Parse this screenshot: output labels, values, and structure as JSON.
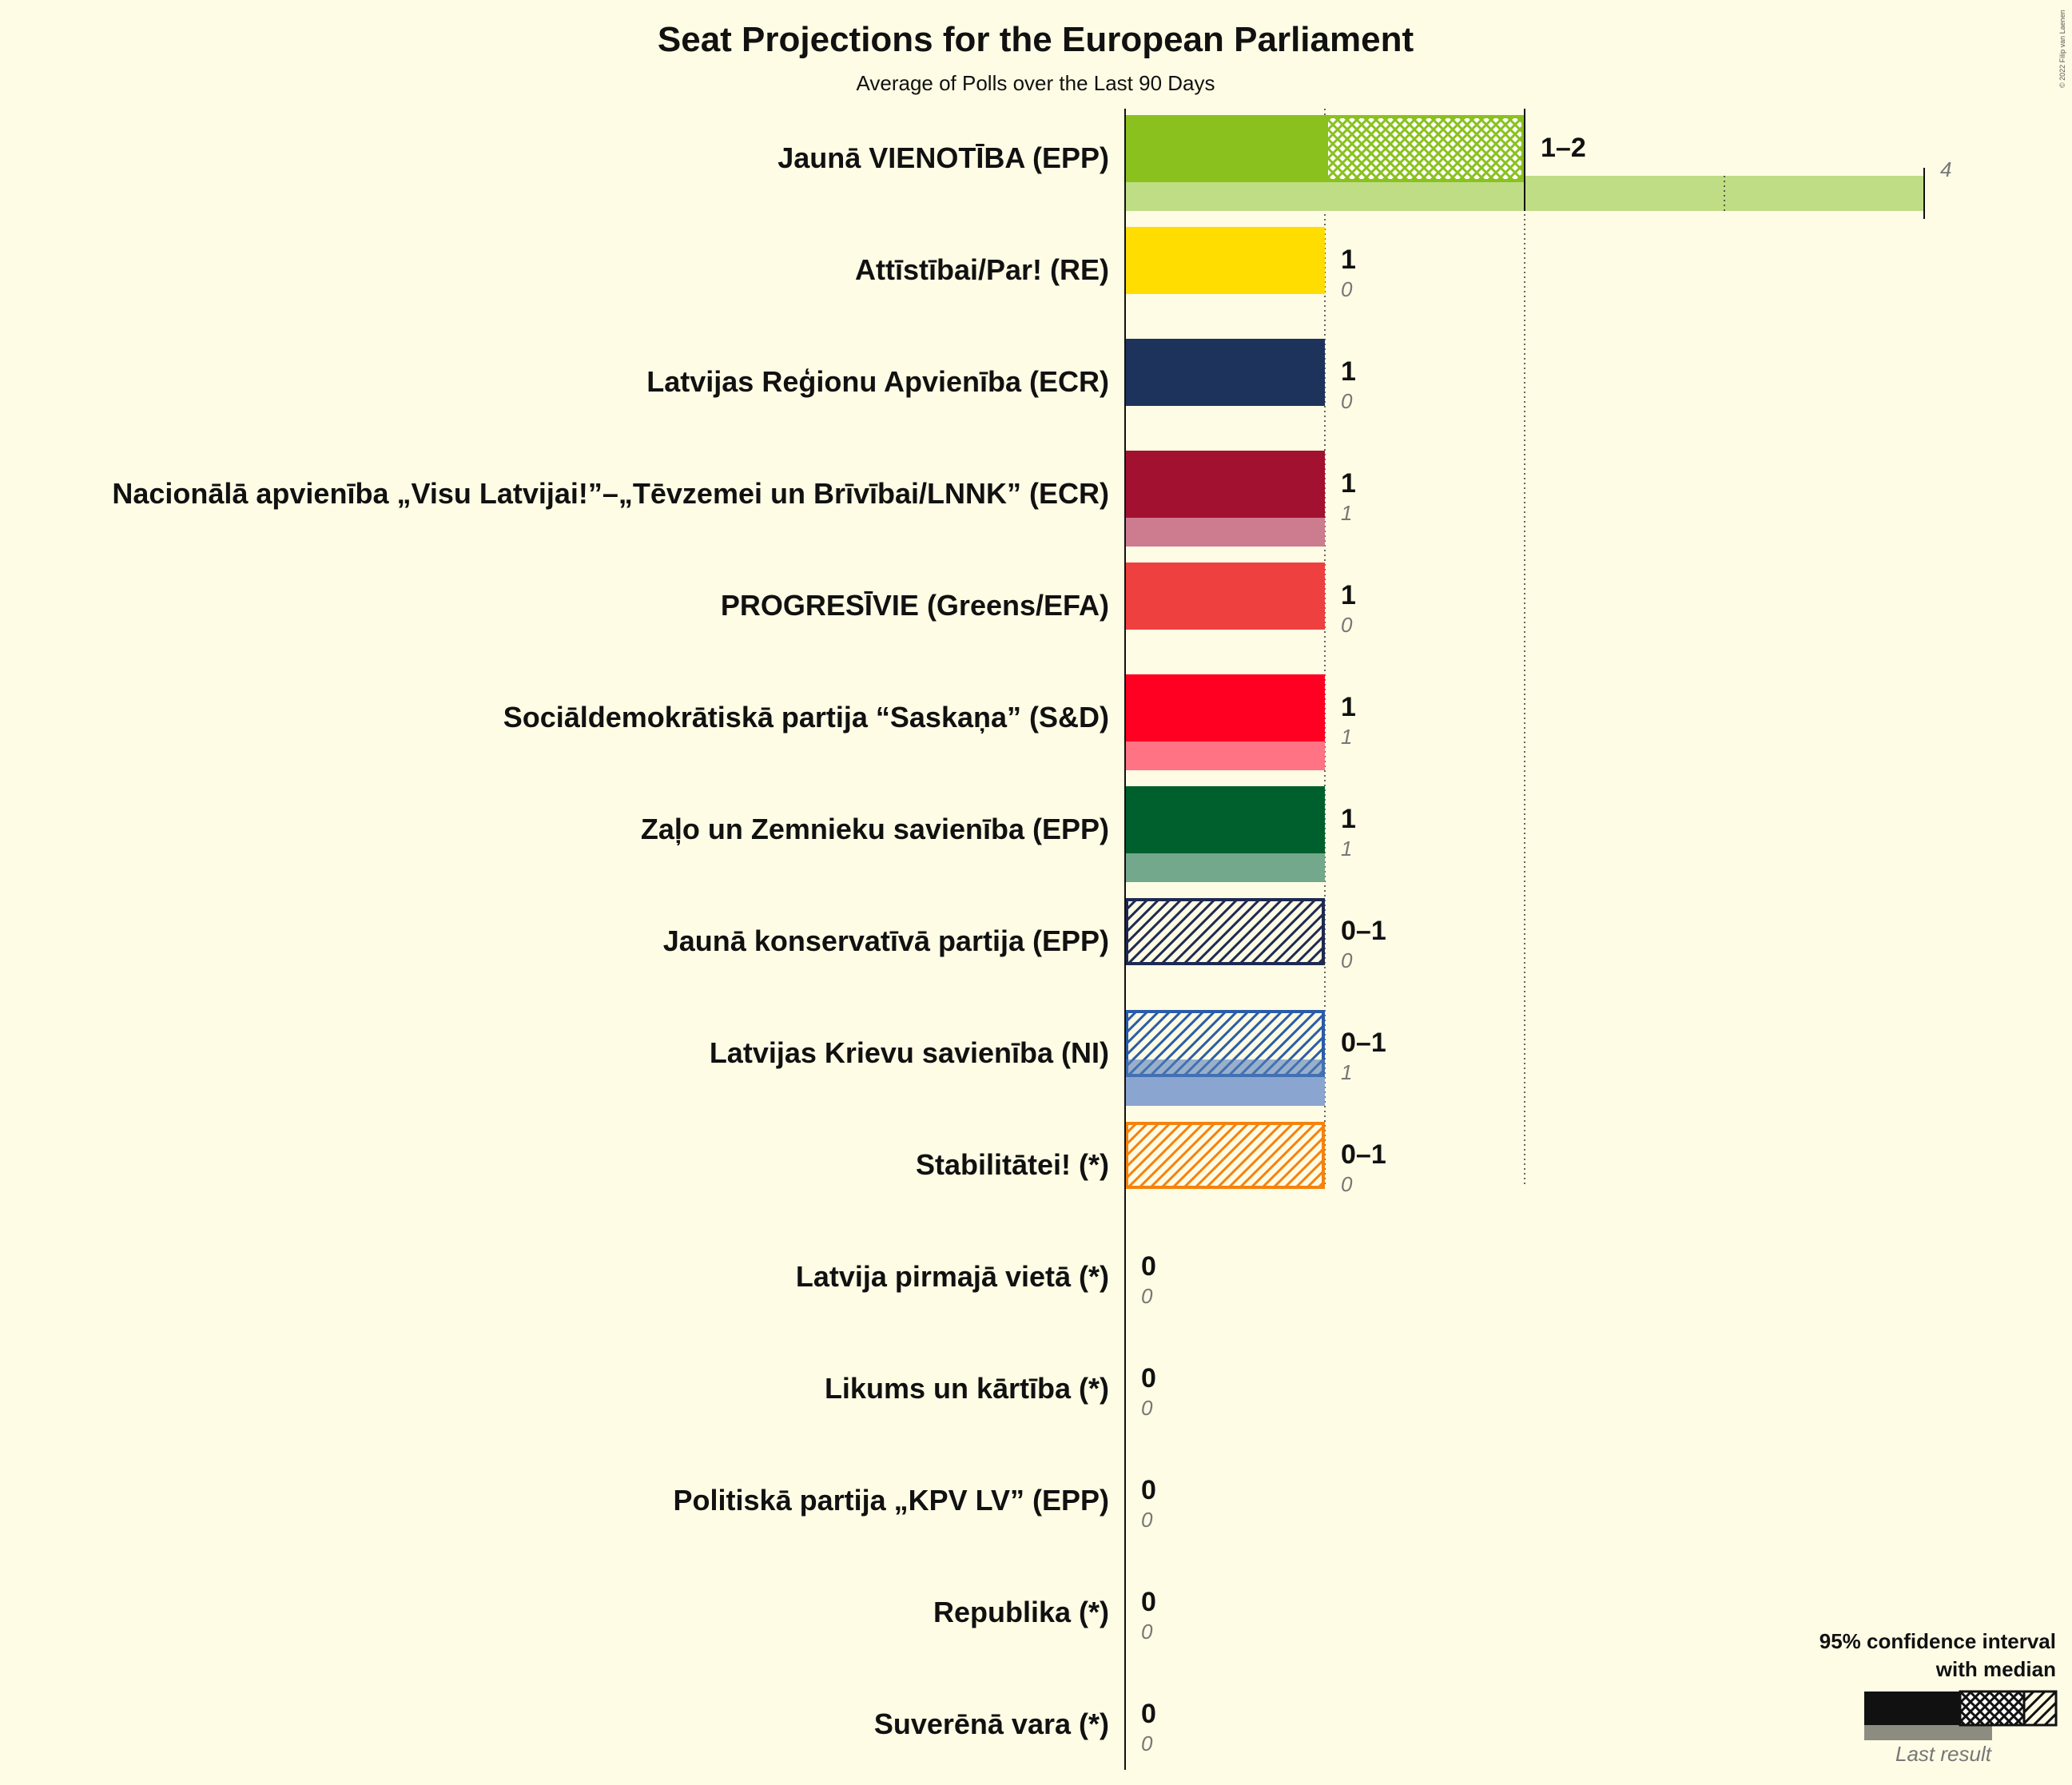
{
  "chart_data": {
    "type": "bar",
    "title": "Seat Projections for the European Parliament",
    "subtitle": "Average of Polls over the Last 90 Days",
    "xlim": [
      0,
      4
    ],
    "parties": [
      {
        "name": "Jaunā VIENOTĪBA (EPP)",
        "color": "#8AC11F",
        "ci_low": 1,
        "median": 1,
        "ci_high": 2,
        "range_label": "1–2",
        "last": 4,
        "last_label": "4"
      },
      {
        "name": "Attīstībai/Par! (RE)",
        "color": "#FFDD00",
        "ci_low": 1,
        "median": 1,
        "ci_high": 1,
        "range_label": "1",
        "last": 0,
        "last_label": "0"
      },
      {
        "name": "Latvijas Reģionu Apvienība (ECR)",
        "color": "#1E335C",
        "ci_low": 1,
        "median": 1,
        "ci_high": 1,
        "range_label": "1",
        "last": 0,
        "last_label": "0"
      },
      {
        "name": "Nacionālā apvienība „Visu Latvijai!”–„Tēvzemei un Brīvībai/LNNK” (ECR)",
        "color": "#A31131",
        "ci_low": 1,
        "median": 1,
        "ci_high": 1,
        "range_label": "1",
        "last": 1,
        "last_label": "1"
      },
      {
        "name": "PROGRESĪVIE (Greens/EFA)",
        "color": "#EF4040",
        "ci_low": 1,
        "median": 1,
        "ci_high": 1,
        "range_label": "1",
        "last": 0,
        "last_label": "0"
      },
      {
        "name": "Sociāldemokrātiskā partija “Saskaņa” (S&D)",
        "color": "#FF0022",
        "ci_low": 1,
        "median": 1,
        "ci_high": 1,
        "range_label": "1",
        "last": 1,
        "last_label": "1"
      },
      {
        "name": "Zaļo un Zemnieku savienība (EPP)",
        "color": "#00602D",
        "ci_low": 1,
        "median": 1,
        "ci_high": 1,
        "range_label": "1",
        "last": 1,
        "last_label": "1"
      },
      {
        "name": "Jaunā konservatīvā partija (EPP)",
        "color": "#1E2A52",
        "ci_low": 0,
        "median": 0,
        "ci_high": 1,
        "range_label": "0–1",
        "last": 0,
        "last_label": "0"
      },
      {
        "name": "Latvijas Krievu savienība (NI)",
        "color": "#2A5CA8",
        "ci_low": 0,
        "median": 0,
        "ci_high": 1,
        "range_label": "0–1",
        "last": 1,
        "last_label": "1"
      },
      {
        "name": "Stabilitātei! (*)",
        "color": "#F5820F",
        "ci_low": 0,
        "median": 0,
        "ci_high": 1,
        "range_label": "0–1",
        "last": 0,
        "last_label": "0"
      },
      {
        "name": "Latvija pirmajā vietā (*)",
        "color": "#888888",
        "ci_low": 0,
        "median": 0,
        "ci_high": 0,
        "range_label": "0",
        "last": 0,
        "last_label": "0"
      },
      {
        "name": "Likums un kārtība (*)",
        "color": "#888888",
        "ci_low": 0,
        "median": 0,
        "ci_high": 0,
        "range_label": "0",
        "last": 0,
        "last_label": "0"
      },
      {
        "name": "Politiskā partija „KPV LV” (EPP)",
        "color": "#888888",
        "ci_low": 0,
        "median": 0,
        "ci_high": 0,
        "range_label": "0",
        "last": 0,
        "last_label": "0"
      },
      {
        "name": "Republika (*)",
        "color": "#888888",
        "ci_low": 0,
        "median": 0,
        "ci_high": 0,
        "range_label": "0",
        "last": 0,
        "last_label": "0"
      },
      {
        "name": "Suverēnā vara (*)",
        "color": "#888888",
        "ci_low": 0,
        "median": 0,
        "ci_high": 0,
        "range_label": "0",
        "last": 0,
        "last_label": "0"
      }
    ],
    "legend": {
      "line1": "95% confidence interval",
      "line2": "with median",
      "last_result": "Last result",
      "placement": "bottom-right"
    },
    "copyright": "© 2022 Filip van Laenen"
  }
}
